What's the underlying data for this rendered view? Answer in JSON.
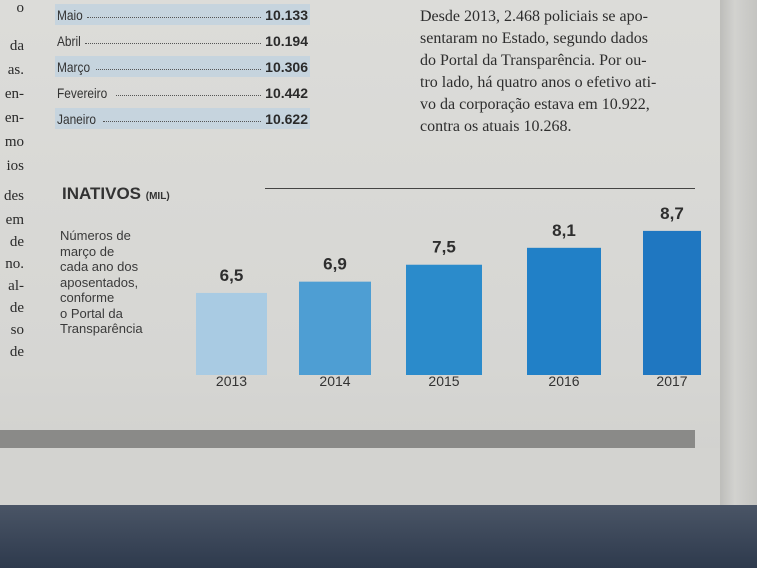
{
  "left_column_fragments": [
    "o",
    "da",
    "as.",
    "en-",
    "en-",
    "mo",
    "ios",
    "des",
    "em",
    "de",
    "no.",
    "al-",
    "de",
    "so",
    "de"
  ],
  "monthly_table": [
    {
      "month": "Maio",
      "value": "10.133",
      "highlight": true
    },
    {
      "month": "Abril",
      "value": "10.194",
      "highlight": false
    },
    {
      "month": "Março",
      "value": "10.306",
      "highlight": true
    },
    {
      "month": "Fevereiro",
      "value": "10.442",
      "highlight": false
    },
    {
      "month": "Janeiro",
      "value": "10.622",
      "highlight": true
    }
  ],
  "article_lines": [
    "Desde 2013, 2.468 policiais se apo-",
    "sentaram no Estado, segundo dados",
    "do Portal da Transparência. Por ou-",
    "tro lado, há quatro anos o efetivo ati-",
    "vo da corporação estava em 10.922,",
    "contra os atuais 10.268."
  ],
  "chart_data": {
    "type": "bar",
    "title": "INATIVOS",
    "unit": "(MIL)",
    "note": "Números de\nmarço de\ncada ano dos\naposentados,\nconforme\no Portal da\nTransparência",
    "categories": [
      "2013",
      "2014",
      "2015",
      "2016",
      "2017"
    ],
    "values": [
      6.5,
      6.9,
      7.5,
      8.1,
      8.7
    ],
    "value_labels": [
      "6,5",
      "6,9",
      "7,5",
      "8,1",
      "8,7"
    ],
    "colors": [
      "#a9cbe3",
      "#4e9ed3",
      "#2b8bcb",
      "#2180c7",
      "#1f77c1"
    ],
    "grid": false
  }
}
